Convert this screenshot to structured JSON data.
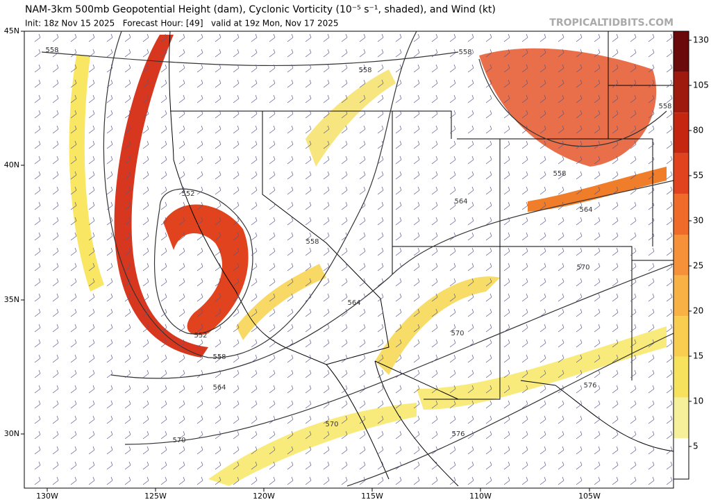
{
  "header": {
    "title": "NAM-3km 500mb Geopotential Height (dam), Cyclonic Vorticity (10⁻⁵ s⁻¹, shaded), and Wind (kt)",
    "subtitle": "Init: 18z Nov 15 2025   Forecast Hour: [49]   valid at 19z Mon, Nov 17 2025",
    "credit": "TROPICALTIDBITS.COM"
  },
  "map": {
    "latitude_labels": [
      "45N",
      "40N",
      "35N",
      "30N"
    ],
    "longitude_labels": [
      "130W",
      "125W",
      "120W",
      "115W",
      "110W",
      "105W"
    ],
    "contour_labels": [
      "558",
      "558",
      "558",
      "558",
      "552",
      "558",
      "558",
      "564",
      "564",
      "570",
      "564",
      "552",
      "558",
      "570",
      "564",
      "576",
      "570",
      "576",
      "570"
    ]
  },
  "colorbar": {
    "ticks": [
      130,
      105,
      80,
      55,
      30,
      25,
      20,
      15,
      10,
      5
    ]
  }
}
